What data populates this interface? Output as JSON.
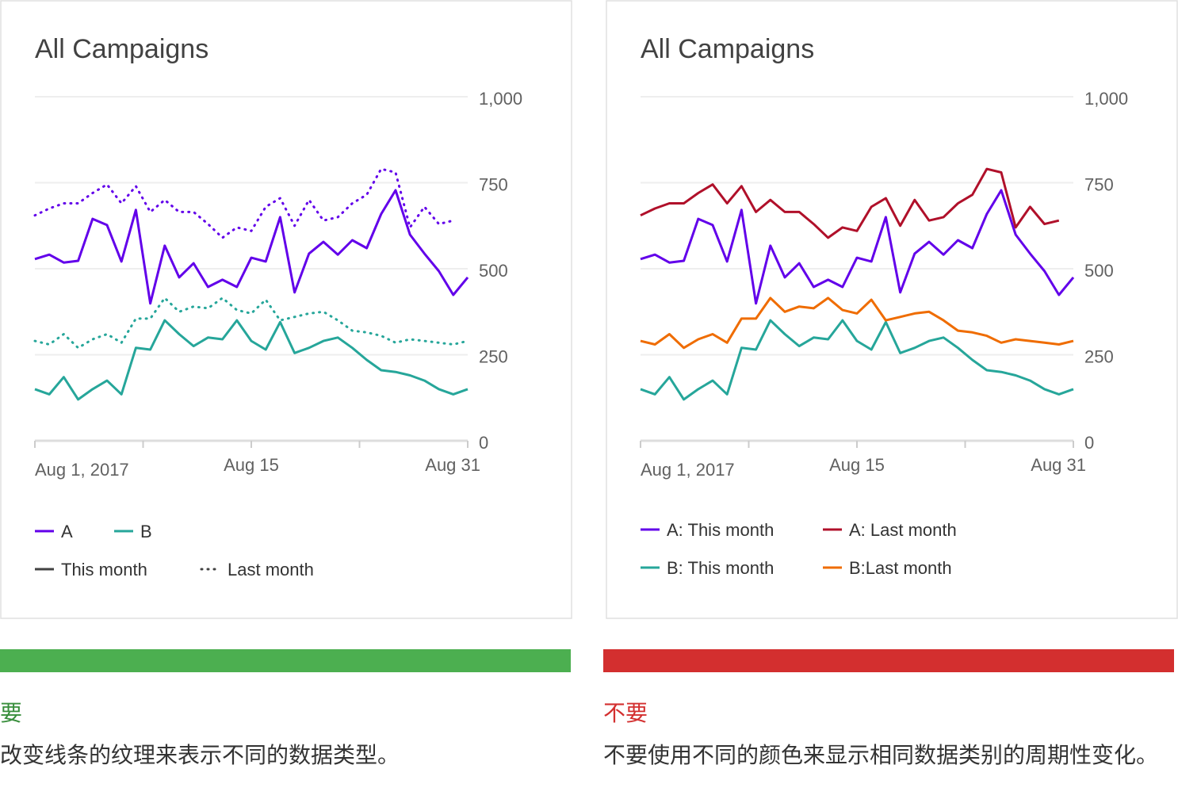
{
  "chart_data": [
    {
      "type": "line",
      "title": "All Campaigns",
      "categories": [
        "Aug 1, 2017",
        null,
        null,
        null,
        null,
        null,
        null,
        null,
        null,
        null,
        null,
        null,
        null,
        null,
        null,
        "Aug 15",
        null,
        null,
        null,
        null,
        null,
        null,
        null,
        null,
        null,
        null,
        null,
        null,
        null,
        null,
        "Aug 31"
      ],
      "ylim": [
        0,
        1000
      ],
      "yticks": [
        0,
        250,
        500,
        750,
        {
          "value": 1000,
          "label": "1,000"
        }
      ],
      "grid": true,
      "series": [
        {
          "color": "#6200ea",
          "dash": "solid",
          "values": [
            528,
            541,
            518,
            523,
            645,
            627,
            521,
            671,
            399,
            567,
            475,
            516,
            447,
            468,
            447,
            532,
            521,
            650,
            431,
            544,
            578,
            541,
            583,
            560,
            659,
            728,
            599,
            544,
            493,
            424,
            475
          ]
        },
        {
          "color": "#26a69a",
          "dash": "solid",
          "values": [
            150,
            135,
            185,
            120,
            150,
            175,
            135,
            270,
            265,
            350,
            310,
            275,
            300,
            295,
            350,
            290,
            265,
            345,
            255,
            270,
            290,
            300,
            270,
            235,
            205,
            200,
            190,
            175,
            150,
            135,
            150
          ]
        },
        {
          "color": "#6200ea",
          "dash": "dotted",
          "values": [
            655,
            675,
            690,
            690,
            720,
            745,
            690,
            740,
            665,
            700,
            665,
            665,
            630,
            590,
            620,
            610,
            680,
            705,
            625,
            700,
            640,
            650,
            690,
            715,
            790,
            780,
            620,
            680,
            630,
            640,
            null
          ]
        },
        {
          "color": "#26a69a",
          "dash": "dotted",
          "values": [
            290,
            280,
            310,
            270,
            295,
            310,
            285,
            355,
            355,
            415,
            375,
            390,
            385,
            415,
            380,
            370,
            410,
            350,
            360,
            370,
            375,
            350,
            320,
            315,
            305,
            285,
            295,
            290,
            285,
            280,
            290
          ]
        }
      ],
      "legend": [
        {
          "label": "A",
          "color": "#6200ea",
          "dash": "solid"
        },
        {
          "label": "B",
          "color": "#26a69a",
          "dash": "solid"
        },
        {
          "label": "This month",
          "color": "#424242",
          "dash": "solid"
        },
        {
          "label": "Last month",
          "color": "#424242",
          "dash": "dotted"
        }
      ]
    },
    {
      "type": "line",
      "title": "All Campaigns",
      "categories": [
        "Aug 1, 2017",
        null,
        null,
        null,
        null,
        null,
        null,
        null,
        null,
        null,
        null,
        null,
        null,
        null,
        null,
        "Aug 15",
        null,
        null,
        null,
        null,
        null,
        null,
        null,
        null,
        null,
        null,
        null,
        null,
        null,
        null,
        "Aug 31"
      ],
      "ylim": [
        0,
        1000
      ],
      "yticks": [
        0,
        250,
        500,
        750,
        {
          "value": 1000,
          "label": "1,000"
        }
      ],
      "grid": true,
      "series": [
        {
          "name": "A: This month",
          "color": "#6200ea",
          "values": [
            528,
            541,
            518,
            523,
            645,
            627,
            521,
            671,
            399,
            567,
            475,
            516,
            447,
            468,
            447,
            532,
            521,
            650,
            431,
            544,
            578,
            541,
            583,
            560,
            659,
            728,
            599,
            544,
            493,
            424,
            475
          ]
        },
        {
          "name": "A: Last month",
          "color": "#b0102a",
          "values": [
            655,
            675,
            690,
            690,
            720,
            745,
            690,
            740,
            665,
            700,
            665,
            665,
            630,
            590,
            620,
            610,
            680,
            705,
            625,
            700,
            640,
            650,
            690,
            715,
            790,
            780,
            620,
            680,
            630,
            640,
            null
          ]
        },
        {
          "name": "B: This month",
          "color": "#26a69a",
          "values": [
            150,
            135,
            185,
            120,
            150,
            175,
            135,
            270,
            265,
            350,
            310,
            275,
            300,
            295,
            350,
            290,
            265,
            345,
            255,
            270,
            290,
            300,
            270,
            235,
            205,
            200,
            190,
            175,
            150,
            135,
            150
          ]
        },
        {
          "name": "B:Last month",
          "color": "#ef6c00",
          "values": [
            290,
            280,
            310,
            270,
            295,
            310,
            285,
            355,
            355,
            415,
            375,
            390,
            385,
            415,
            380,
            370,
            410,
            350,
            360,
            370,
            375,
            350,
            320,
            315,
            305,
            285,
            295,
            290,
            285,
            280,
            290
          ]
        }
      ]
    }
  ],
  "captions": [
    {
      "label": "要",
      "text": "改变线条的纹理来表示不同的数据类型。",
      "color": "#4caf50",
      "label_color": "#388e3c"
    },
    {
      "label": "不要",
      "text": "不要使用不同的颜色来显示相同数据类别的周期性变化。",
      "color": "#d32f2f",
      "label_color": "#d32f2f"
    }
  ]
}
